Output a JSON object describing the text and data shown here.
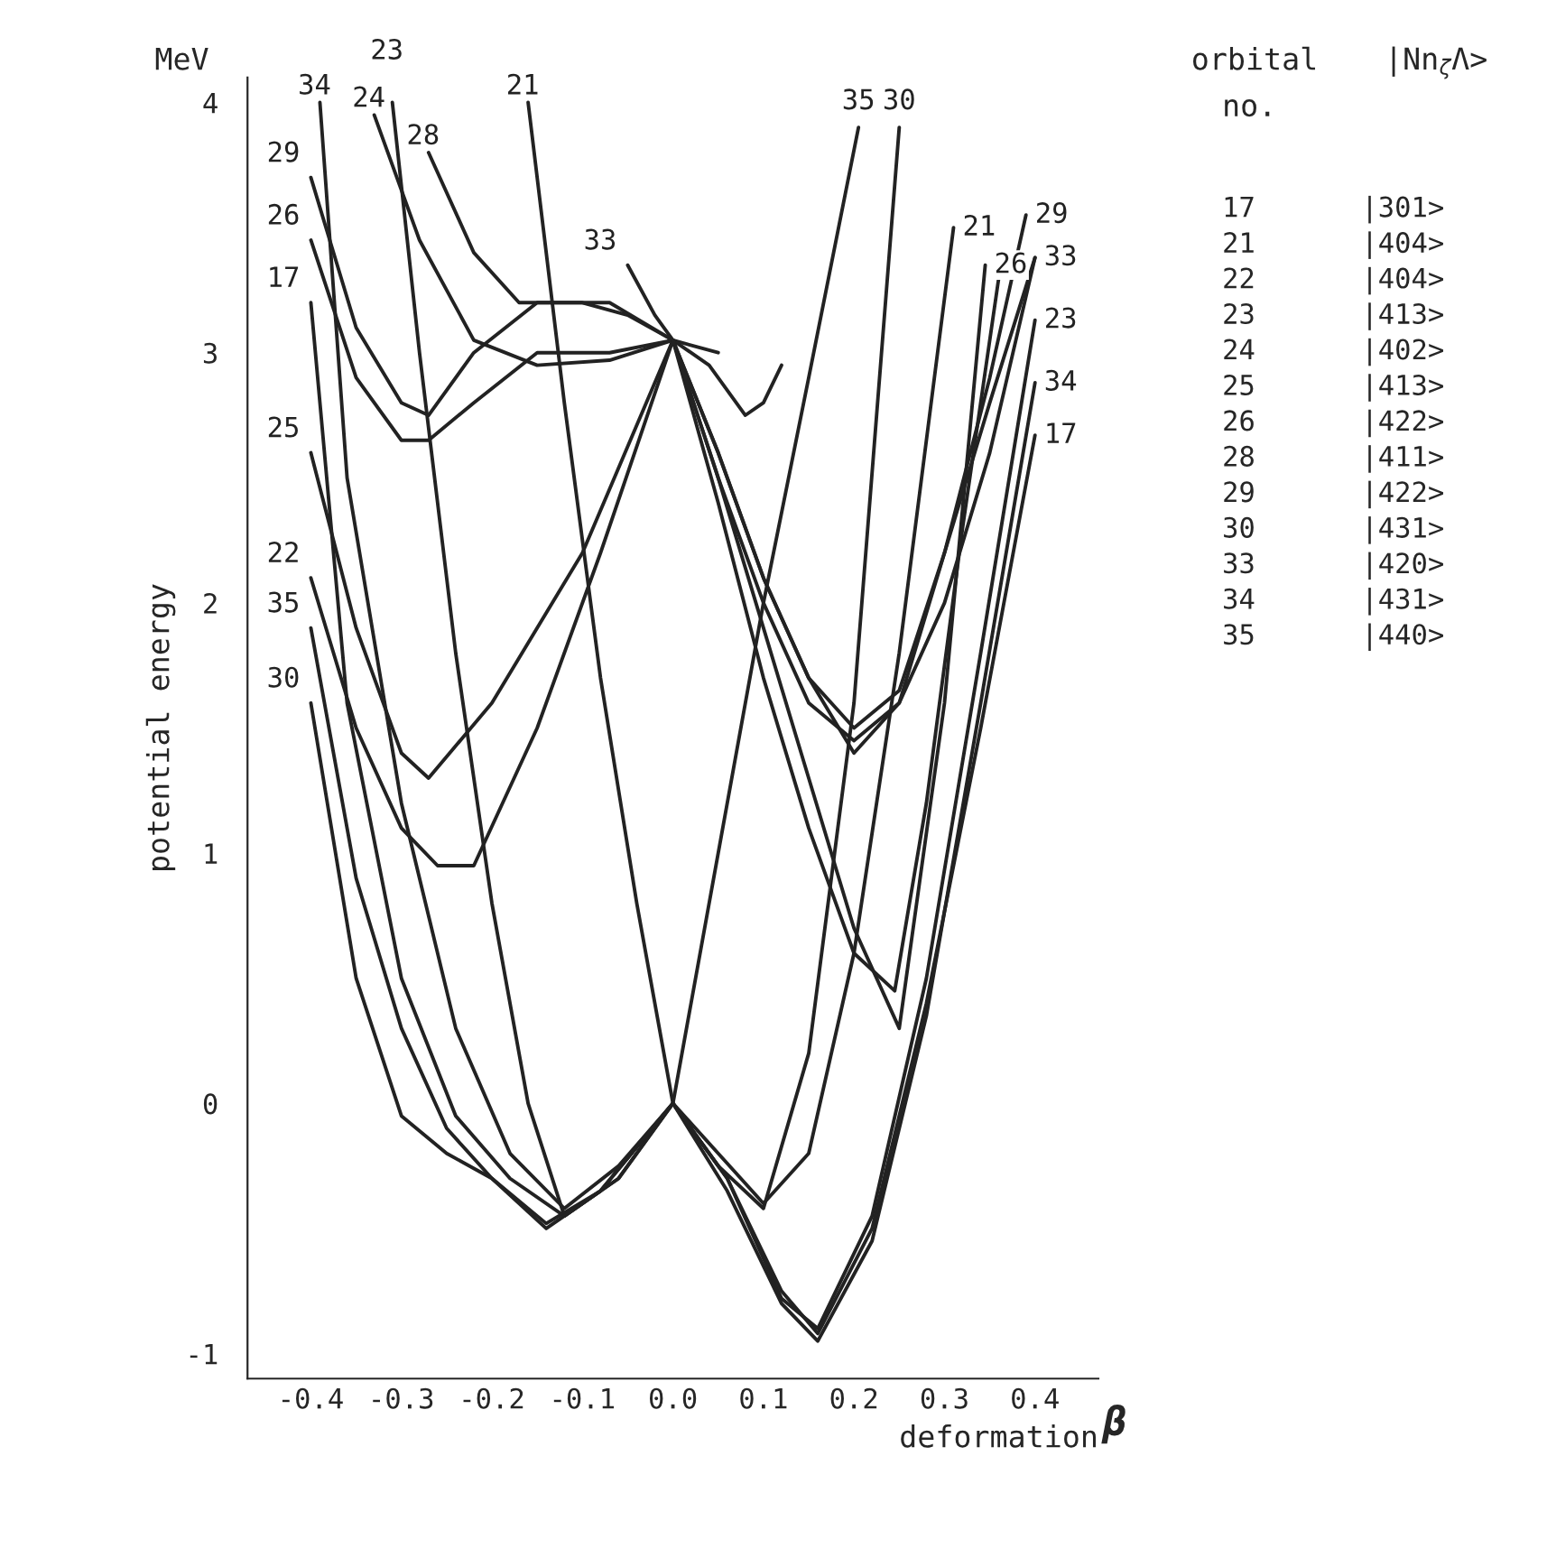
{
  "chart_data": {
    "type": "line",
    "xlabel": "deformation",
    "ylabel": "potential energy",
    "xlim": [
      -0.47,
      0.47
    ],
    "ylim": [
      -1.1,
      4.1
    ],
    "xticks": [
      -0.4,
      -0.3,
      -0.2,
      -0.1,
      {
        "value": 0,
        "label": "0.0"
      },
      0.1,
      0.2,
      0.3,
      0.4
    ],
    "yticks": [
      -1,
      0,
      1,
      2,
      3,
      4
    ],
    "grid": false,
    "legend": false,
    "marker": "none",
    "line_style": "solid",
    "annotations": [
      "MeV",
      "β",
      "orbital",
      "|Nn$_{ζ}$Λ>",
      "no.",
      "17",
      "|301>",
      "21",
      "|404>",
      "22",
      "|404>",
      "23",
      "|413>",
      "24",
      "|402>",
      "25",
      "|413>",
      "26",
      "|422>",
      "28",
      "|411>",
      "29",
      "|422>",
      "30",
      "|431>",
      "33",
      "|420>",
      "34",
      "|431>",
      "35",
      "|440>"
    ],
    "series": [
      {
        "name": "34",
        "color": "#222222",
        "x": [
          -0.39,
          -0.36,
          -0.3,
          -0.24,
          -0.18,
          -0.12,
          -0.06,
          0,
          0.06,
          0.12,
          0.16,
          0.22,
          0.28,
          0.34,
          0.4
        ],
        "values": [
          4.0,
          2.5,
          1.2,
          0.3,
          -0.2,
          -0.42,
          -0.25,
          0,
          -0.35,
          -0.8,
          -0.95,
          -0.55,
          0.35,
          1.6,
          2.88
        ]
      },
      {
        "name": "24",
        "color": "#222222",
        "x": [
          -0.33,
          -0.28,
          -0.22,
          -0.15,
          -0.07,
          0,
          0.05
        ],
        "values": [
          3.95,
          3.45,
          3.05,
          2.95,
          2.97,
          3.05,
          3.0
        ]
      },
      {
        "name": "23",
        "color": "#222222",
        "x": [
          -0.31,
          -0.28,
          -0.24,
          -0.2,
          -0.16,
          -0.12,
          -0.06,
          0,
          0.06,
          0.12,
          0.16,
          0.22,
          0.28,
          0.34,
          0.4
        ],
        "values": [
          4.0,
          3.0,
          1.8,
          0.8,
          0.0,
          -0.45,
          -0.3,
          0,
          -0.3,
          -0.78,
          -0.9,
          -0.45,
          0.5,
          1.8,
          3.13
        ]
      },
      {
        "name": "28",
        "color": "#222222",
        "x": [
          -0.27,
          -0.22,
          -0.17,
          -0.1,
          -0.05,
          0,
          0.04,
          0.08,
          0.1,
          0.12
        ],
        "values": [
          3.8,
          3.4,
          3.2,
          3.2,
          3.15,
          3.05,
          2.95,
          2.75,
          2.8,
          2.95
        ]
      },
      {
        "name": "21",
        "color": "#222222",
        "x": [
          -0.16,
          -0.12,
          -0.08,
          -0.04,
          0,
          0.05,
          0.1,
          0.15,
          0.2,
          0.25,
          0.31
        ],
        "values": [
          4.0,
          2.8,
          1.7,
          0.8,
          0,
          -0.2,
          -0.4,
          -0.2,
          0.6,
          1.8,
          3.5
        ]
      },
      {
        "name": "29",
        "color": "#222222",
        "x": [
          -0.4,
          -0.35,
          -0.3,
          -0.27,
          -0.22,
          -0.15,
          -0.07,
          0,
          0.05,
          0.1,
          0.15,
          0.2,
          0.25,
          0.3,
          0.35,
          0.39
        ],
        "values": [
          3.7,
          3.1,
          2.8,
          2.75,
          3.0,
          3.2,
          3.2,
          3.05,
          2.6,
          2.1,
          1.7,
          1.5,
          1.65,
          2.2,
          2.9,
          3.55
        ]
      },
      {
        "name": "26",
        "color": "#222222",
        "x": [
          -0.4,
          -0.35,
          -0.3,
          -0.27,
          -0.22,
          -0.15,
          -0.07,
          0,
          0.05,
          0.1,
          0.15,
          0.2,
          0.25,
          0.3,
          0.345
        ],
        "values": [
          3.45,
          2.9,
          2.65,
          2.65,
          2.8,
          3.0,
          3.0,
          3.05,
          2.5,
          1.9,
          1.3,
          0.7,
          0.3,
          1.6,
          3.35
        ]
      },
      {
        "name": "17",
        "color": "#222222",
        "x": [
          -0.4,
          -0.36,
          -0.3,
          -0.24,
          -0.18,
          -0.12,
          -0.06,
          0,
          0.06,
          0.12,
          0.16,
          0.22,
          0.28,
          0.34,
          0.4
        ],
        "values": [
          3.2,
          1.6,
          0.5,
          -0.05,
          -0.3,
          -0.45,
          -0.3,
          0,
          -0.3,
          -0.75,
          -0.92,
          -0.5,
          0.4,
          1.5,
          2.67
        ]
      },
      {
        "name": "25",
        "color": "#222222",
        "x": [
          -0.4,
          -0.35,
          -0.3,
          -0.27,
          -0.2,
          -0.1,
          0,
          0.05,
          0.1,
          0.15,
          0.2,
          0.25,
          0.3,
          0.35,
          0.4
        ],
        "values": [
          2.6,
          1.9,
          1.4,
          1.3,
          1.6,
          2.2,
          3.05,
          2.6,
          2.1,
          1.7,
          1.4,
          1.6,
          2.2,
          2.8,
          3.38
        ]
      },
      {
        "name": "22",
        "color": "#222222",
        "x": [
          -0.4,
          -0.35,
          -0.3,
          -0.26,
          -0.22,
          -0.15,
          -0.08,
          0,
          0.05,
          0.1,
          0.15,
          0.2,
          0.245,
          0.28,
          0.32,
          0.36
        ],
        "values": [
          2.1,
          1.5,
          1.1,
          0.95,
          0.95,
          1.5,
          2.2,
          3.05,
          2.4,
          1.7,
          1.1,
          0.6,
          0.45,
          1.2,
          2.3,
          3.3
        ]
      },
      {
        "name": "35",
        "color": "#222222",
        "x": [
          -0.4,
          -0.35,
          -0.3,
          -0.25,
          -0.2,
          -0.14,
          -0.08,
          0,
          0.05,
          0.1,
          0.15,
          0.205
        ],
        "values": [
          1.9,
          0.9,
          0.3,
          -0.1,
          -0.3,
          -0.48,
          -0.35,
          0,
          1.0,
          2.0,
          2.9,
          3.9
        ]
      },
      {
        "name": "30",
        "color": "#222222",
        "x": [
          -0.4,
          -0.35,
          -0.3,
          -0.25,
          -0.2,
          -0.14,
          -0.08,
          0,
          0.05,
          0.1,
          0.15,
          0.2,
          0.25
        ],
        "values": [
          1.6,
          0.5,
          -0.05,
          -0.2,
          -0.3,
          -0.5,
          -0.35,
          0,
          -0.25,
          -0.42,
          0.2,
          1.6,
          3.9
        ]
      },
      {
        "name": "33",
        "color": "#222222",
        "x": [
          -0.05,
          -0.02,
          0,
          0.05,
          0.1,
          0.15,
          0.2,
          0.25,
          0.3,
          0.35,
          0.4
        ],
        "values": [
          3.35,
          3.15,
          3.05,
          2.5,
          2.0,
          1.6,
          1.45,
          1.6,
          2.0,
          2.6,
          3.38
        ]
      }
    ]
  }
}
